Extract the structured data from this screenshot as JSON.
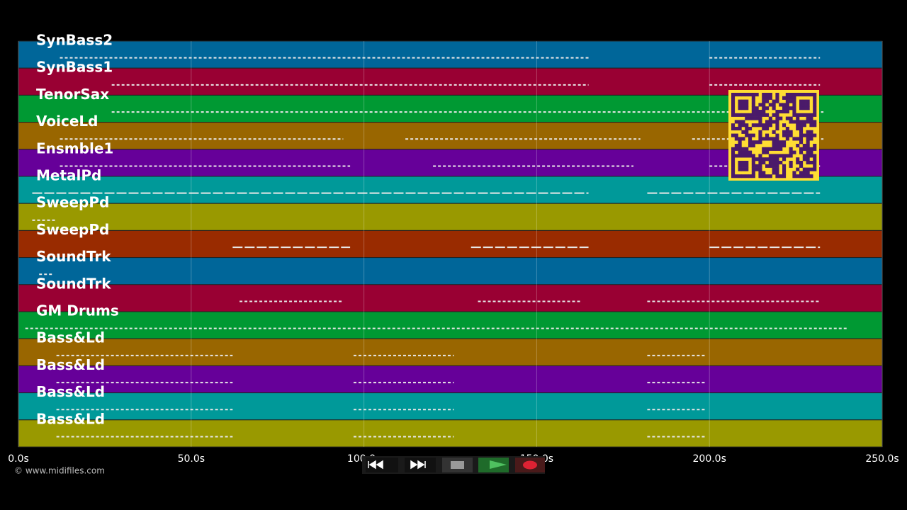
{
  "tracks": [
    {
      "name": "SynBass2",
      "color": "#006699"
    },
    {
      "name": "SynBass1",
      "color": "#990033"
    },
    {
      "name": "TenorSax",
      "color": "#009933"
    },
    {
      "name": "VoiceLd",
      "color": "#996600"
    },
    {
      "name": "Ensmble1",
      "color": "#660099"
    },
    {
      "name": "MetalPd",
      "color": "#009999"
    },
    {
      "name": "SweepPd",
      "color": "#999900"
    },
    {
      "name": "SweepPd",
      "color": "#992b00"
    },
    {
      "name": "SoundTrk",
      "color": "#006699"
    },
    {
      "name": "SoundTrk",
      "color": "#990033"
    },
    {
      "name": "GM Drums",
      "color": "#009933"
    },
    {
      "name": "Bass&Ld",
      "color": "#996600"
    },
    {
      "name": "Bass&Ld",
      "color": "#660099"
    },
    {
      "name": "Bass&Ld",
      "color": "#009999"
    },
    {
      "name": "Bass&Ld",
      "color": "#999900"
    }
  ],
  "axis": {
    "ticks": [
      "0.0s",
      "50.0s",
      "100.0s",
      "150.0s",
      "200.0s",
      "250.0s"
    ]
  },
  "footer": {
    "copyright": "© www.midifiles.com"
  }
}
